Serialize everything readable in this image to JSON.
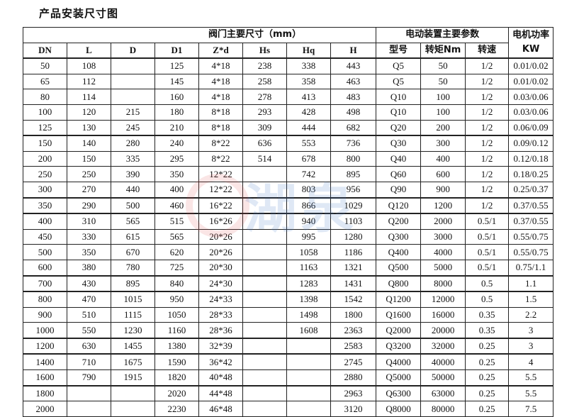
{
  "title": "产品安装尺寸图",
  "watermark": "湖泉",
  "header": {
    "valve_group": "阀门主要尺寸（mm）",
    "actuator_group": "电动装置主要参数",
    "motor_power": "电机功率KW",
    "columns": [
      "DN",
      "L",
      "D",
      "D1",
      "Z*d",
      "Hs",
      "Hq",
      "H",
      "型号",
      "转矩Nm",
      "转速"
    ]
  },
  "rows": [
    [
      "50",
      "108",
      "",
      "125",
      "4*18",
      "238",
      "338",
      "443",
      "Q5",
      "50",
      "1/2",
      "0.01/0.02"
    ],
    [
      "65",
      "112",
      "",
      "145",
      "4*18",
      "258",
      "358",
      "463",
      "Q5",
      "50",
      "1/2",
      "0.01/0.02"
    ],
    [
      "80",
      "114",
      "",
      "160",
      "4*18",
      "278",
      "413",
      "483",
      "Q10",
      "100",
      "1/2",
      "0.03/0.06"
    ],
    [
      "100",
      "120",
      "215",
      "180",
      "8*18",
      "293",
      "428",
      "498",
      "Q10",
      "100",
      "1/2",
      "0.03/0.06"
    ],
    [
      "125",
      "130",
      "245",
      "210",
      "8*18",
      "309",
      "444",
      "682",
      "Q20",
      "200",
      "1/2",
      "0.06/0.09"
    ],
    [
      "150",
      "140",
      "280",
      "240",
      "8*22",
      "636",
      "553",
      "736",
      "Q30",
      "300",
      "1/2",
      "0.09/0.12"
    ],
    [
      "200",
      "150",
      "335",
      "295",
      "8*22",
      "514",
      "678",
      "800",
      "Q40",
      "400",
      "1/2",
      "0.12/0.18"
    ],
    [
      "250",
      "250",
      "390",
      "350",
      "12*22",
      "",
      "742",
      "895",
      "Q60",
      "600",
      "1/2",
      "0.18/0.25"
    ],
    [
      "300",
      "270",
      "440",
      "400",
      "12*22",
      "",
      "803",
      "956",
      "Q90",
      "900",
      "1/2",
      "0.25/0.37"
    ],
    [
      "350",
      "290",
      "500",
      "460",
      "16*22",
      "",
      "866",
      "1029",
      "Q120",
      "1200",
      "1/2",
      "0.37/0.55"
    ],
    [
      "400",
      "310",
      "565",
      "515",
      "16*26",
      "",
      "940",
      "1103",
      "Q200",
      "2000",
      "0.5/1",
      "0.37/0.55"
    ],
    [
      "450",
      "330",
      "615",
      "565",
      "20*26",
      "",
      "995",
      "1280",
      "Q300",
      "3000",
      "0.5/1",
      "0.55/0.75"
    ],
    [
      "500",
      "350",
      "670",
      "620",
      "20*26",
      "",
      "1058",
      "1186",
      "Q400",
      "4000",
      "0.5/1",
      "0.55/0.75"
    ],
    [
      "600",
      "380",
      "780",
      "725",
      "20*30",
      "",
      "1163",
      "1321",
      "Q500",
      "5000",
      "0.5/1",
      "0.75/1.1"
    ],
    [
      "700",
      "430",
      "895",
      "840",
      "24*30",
      "",
      "1283",
      "1431",
      "Q800",
      "8000",
      "0.5",
      "1.1"
    ],
    [
      "800",
      "470",
      "1015",
      "950",
      "24*33",
      "",
      "1398",
      "1542",
      "Q1200",
      "12000",
      "0.5",
      "1.5"
    ],
    [
      "900",
      "510",
      "1115",
      "1050",
      "28*33",
      "",
      "1498",
      "1800",
      "Q1600",
      "16000",
      "0.35",
      "2.2"
    ],
    [
      "1000",
      "550",
      "1230",
      "1160",
      "28*36",
      "",
      "1608",
      "2363",
      "Q2000",
      "20000",
      "0.35",
      "3"
    ],
    [
      "1200",
      "630",
      "1455",
      "1380",
      "32*39",
      "",
      "",
      "2583",
      "Q3200",
      "32000",
      "0.25",
      "3"
    ],
    [
      "1400",
      "710",
      "1675",
      "1590",
      "36*42",
      "",
      "",
      "2745",
      "Q4000",
      "40000",
      "0.25",
      "4"
    ],
    [
      "1600",
      "790",
      "1915",
      "1820",
      "40*48",
      "",
      "",
      "2880",
      "Q5000",
      "50000",
      "0.25",
      "5.5"
    ],
    [
      "1800",
      "",
      "",
      "2020",
      "44*48",
      "",
      "",
      "2963",
      "Q6300",
      "63000",
      "0.25",
      "5.5"
    ],
    [
      "2000",
      "",
      "",
      "2230",
      "46*48",
      "",
      "",
      "3120",
      "Q8000",
      "80000",
      "0.25",
      "7.5"
    ]
  ]
}
